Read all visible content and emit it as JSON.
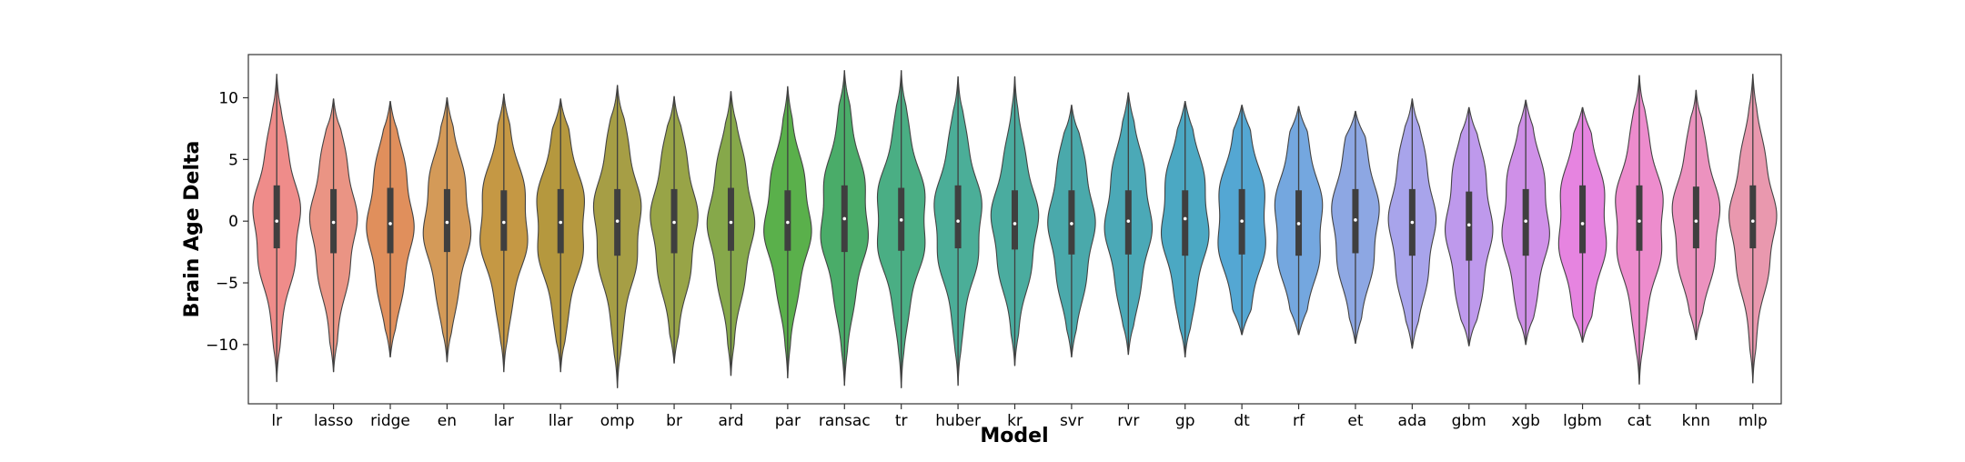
{
  "chart_data": {
    "type": "violin",
    "xlabel": "Model",
    "ylabel": "Brain Age Delta",
    "ylim": [
      -14.8,
      13.5
    ],
    "yticks": [
      -10,
      -5,
      0,
      5,
      10
    ],
    "grid": false,
    "legend": "none",
    "categories": [
      "lr",
      "lasso",
      "ridge",
      "en",
      "lar",
      "llar",
      "omp",
      "br",
      "ard",
      "par",
      "ransac",
      "tr",
      "huber",
      "kr",
      "svr",
      "rvr",
      "gp",
      "dt",
      "rf",
      "et",
      "ada",
      "gbm",
      "xgb",
      "lgbm",
      "cat",
      "knn",
      "mlp"
    ],
    "colors": [
      "#ef8c8a",
      "#ea9484",
      "#e08f5c",
      "#d49a58",
      "#c59844",
      "#b5983e",
      "#a69e45",
      "#98a447",
      "#86a84a",
      "#5ab04b",
      "#4aac69",
      "#4aae84",
      "#4bae98",
      "#4aac9f",
      "#4aa9ab",
      "#4ba9b7",
      "#4ba8c3",
      "#54a7d3",
      "#74a7df",
      "#8da7e3",
      "#a8a4eb",
      "#be99ec",
      "#cf90e8",
      "#e684e0",
      "#ed8ccd",
      "#ec92bf",
      "#e998ae"
    ],
    "violins": [
      {
        "min": -13.0,
        "max": 11.9,
        "q1": -2.2,
        "median": 0.0,
        "q3": 2.9
      },
      {
        "min": -12.2,
        "max": 9.9,
        "q1": -2.6,
        "median": -0.1,
        "q3": 2.6
      },
      {
        "min": -11.0,
        "max": 9.7,
        "q1": -2.6,
        "median": -0.2,
        "q3": 2.7
      },
      {
        "min": -11.4,
        "max": 10.0,
        "q1": -2.5,
        "median": -0.1,
        "q3": 2.6
      },
      {
        "min": -12.2,
        "max": 10.3,
        "q1": -2.4,
        "median": -0.1,
        "q3": 2.5
      },
      {
        "min": -12.2,
        "max": 9.9,
        "q1": -2.6,
        "median": -0.1,
        "q3": 2.6
      },
      {
        "min": -13.5,
        "max": 11.0,
        "q1": -2.8,
        "median": 0.0,
        "q3": 2.6
      },
      {
        "min": -11.5,
        "max": 10.1,
        "q1": -2.6,
        "median": -0.1,
        "q3": 2.6
      },
      {
        "min": -12.5,
        "max": 10.5,
        "q1": -2.4,
        "median": -0.1,
        "q3": 2.7
      },
      {
        "min": -12.7,
        "max": 10.9,
        "q1": -2.4,
        "median": -0.1,
        "q3": 2.5
      },
      {
        "min": -13.3,
        "max": 12.2,
        "q1": -2.5,
        "median": 0.2,
        "q3": 2.9
      },
      {
        "min": -13.5,
        "max": 12.2,
        "q1": -2.4,
        "median": 0.1,
        "q3": 2.7
      },
      {
        "min": -13.3,
        "max": 11.7,
        "q1": -2.2,
        "median": 0.0,
        "q3": 2.9
      },
      {
        "min": -11.7,
        "max": 11.7,
        "q1": -2.3,
        "median": -0.2,
        "q3": 2.5
      },
      {
        "min": -11.0,
        "max": 9.4,
        "q1": -2.7,
        "median": -0.2,
        "q3": 2.5
      },
      {
        "min": -10.8,
        "max": 10.4,
        "q1": -2.7,
        "median": 0.0,
        "q3": 2.5
      },
      {
        "min": -11.0,
        "max": 9.7,
        "q1": -2.8,
        "median": 0.2,
        "q3": 2.5
      },
      {
        "min": -9.2,
        "max": 9.4,
        "q1": -2.7,
        "median": 0.0,
        "q3": 2.6
      },
      {
        "min": -9.2,
        "max": 9.3,
        "q1": -2.8,
        "median": -0.2,
        "q3": 2.5
      },
      {
        "min": -9.9,
        "max": 8.9,
        "q1": -2.6,
        "median": 0.1,
        "q3": 2.6
      },
      {
        "min": -10.3,
        "max": 9.9,
        "q1": -2.8,
        "median": -0.1,
        "q3": 2.6
      },
      {
        "min": -10.1,
        "max": 9.2,
        "q1": -3.2,
        "median": -0.3,
        "q3": 2.4
      },
      {
        "min": -10.0,
        "max": 9.8,
        "q1": -2.8,
        "median": 0.0,
        "q3": 2.6
      },
      {
        "min": -9.8,
        "max": 9.2,
        "q1": -2.6,
        "median": -0.2,
        "q3": 2.9
      },
      {
        "min": -13.2,
        "max": 11.8,
        "q1": -2.4,
        "median": 0.0,
        "q3": 2.9
      },
      {
        "min": -9.6,
        "max": 10.6,
        "q1": -2.2,
        "median": 0.0,
        "q3": 2.8
      },
      {
        "min": -13.1,
        "max": 11.9,
        "q1": -2.2,
        "median": 0.0,
        "q3": 2.9
      }
    ]
  }
}
